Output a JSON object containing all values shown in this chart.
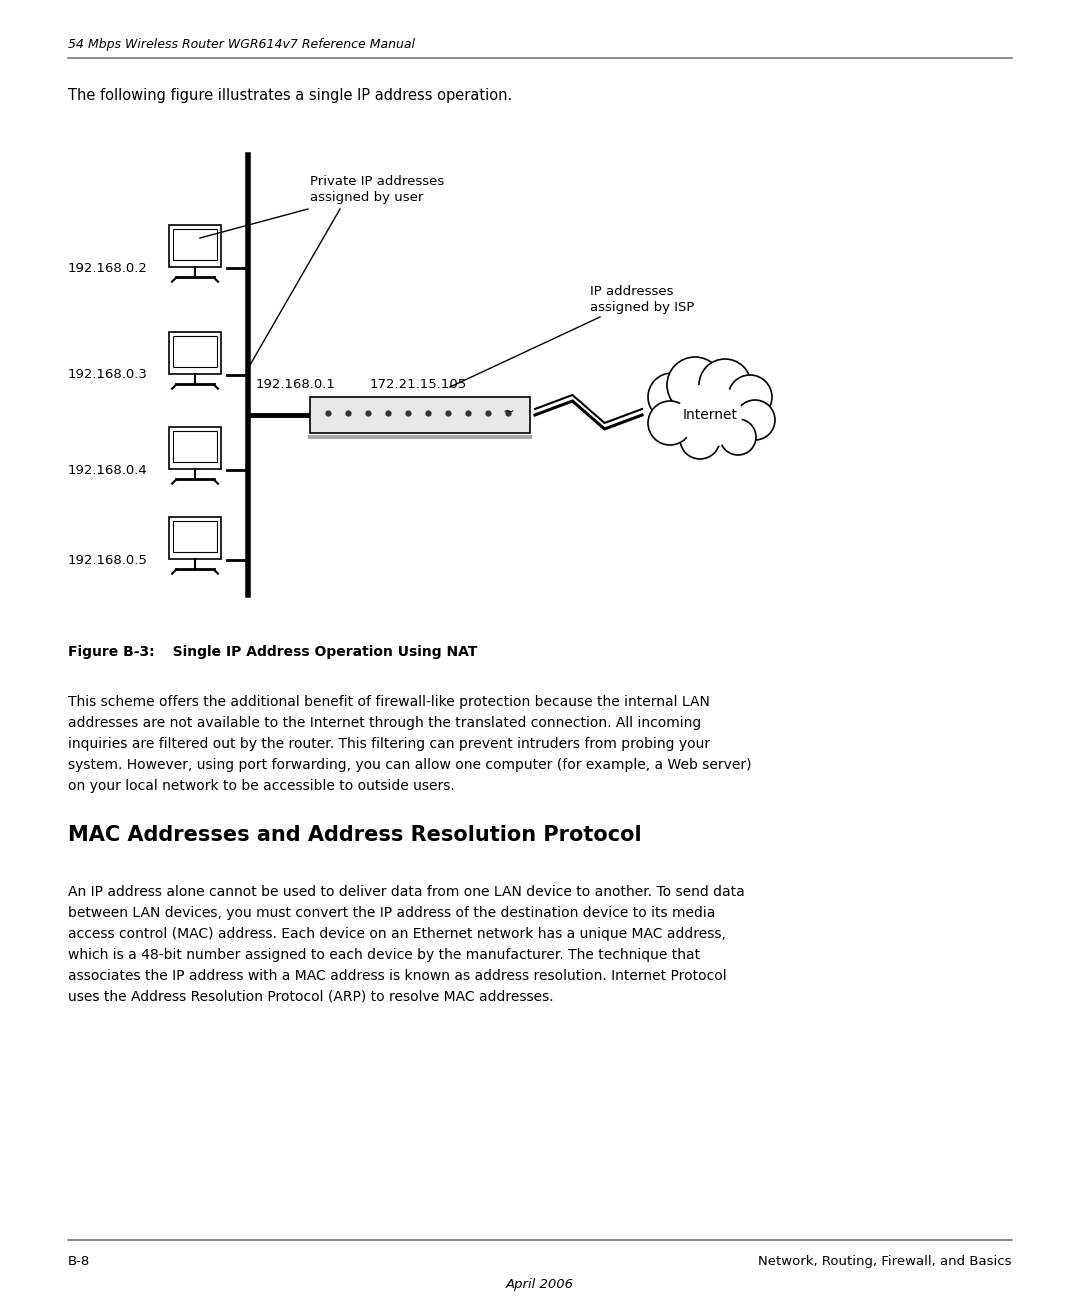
{
  "header_italic": "54 Mbps Wireless Router WGR614v7 Reference Manual",
  "intro_text": "The following figure illustrates a single IP address operation.",
  "private_label_line1": "Private IP addresses",
  "private_label_line2": "assigned by user",
  "isp_label_line1": "IP addresses",
  "isp_label_line2": "assigned by ISP",
  "computers": [
    {
      "ip": "192.168.0.2"
    },
    {
      "ip": "192.168.0.3"
    },
    {
      "ip": "192.168.0.4"
    },
    {
      "ip": "192.168.0.5"
    }
  ],
  "router_ip_left": "192.168.0.1",
  "router_ip_right": "172.21.15.105",
  "internet_label": "Internet",
  "figure_caption_bold": "Figure B-3:",
  "figure_caption_rest": "   Single IP Address Operation Using NAT",
  "body_text1_lines": [
    "This scheme offers the additional benefit of firewall-like protection because the internal LAN",
    "addresses are not available to the Internet through the translated connection. All incoming",
    "inquiries are filtered out by the router. This filtering can prevent intruders from probing your",
    "system. However, using port forwarding, you can allow one computer (for example, a Web server)",
    "on your local network to be accessible to outside users."
  ],
  "section_heading": "MAC Addresses and Address Resolution Protocol",
  "body_text2_lines": [
    "An IP address alone cannot be used to deliver data from one LAN device to another. To send data",
    "between LAN devices, you must convert the IP address of the destination device to its media",
    "access control (MAC) address. Each device on an Ethernet network has a unique MAC address,",
    "which is a 48-bit number assigned to each device by the manufacturer. The technique that",
    "associates the IP address with a MAC address is known as address resolution. Internet Protocol",
    "uses the Address Resolution Protocol (ARP) to resolve MAC addresses."
  ],
  "footer_left": "B-8",
  "footer_right": "Network, Routing, Firewall, and Basics",
  "footer_center": "April 2006",
  "bg_color": "#ffffff",
  "text_color": "#000000"
}
